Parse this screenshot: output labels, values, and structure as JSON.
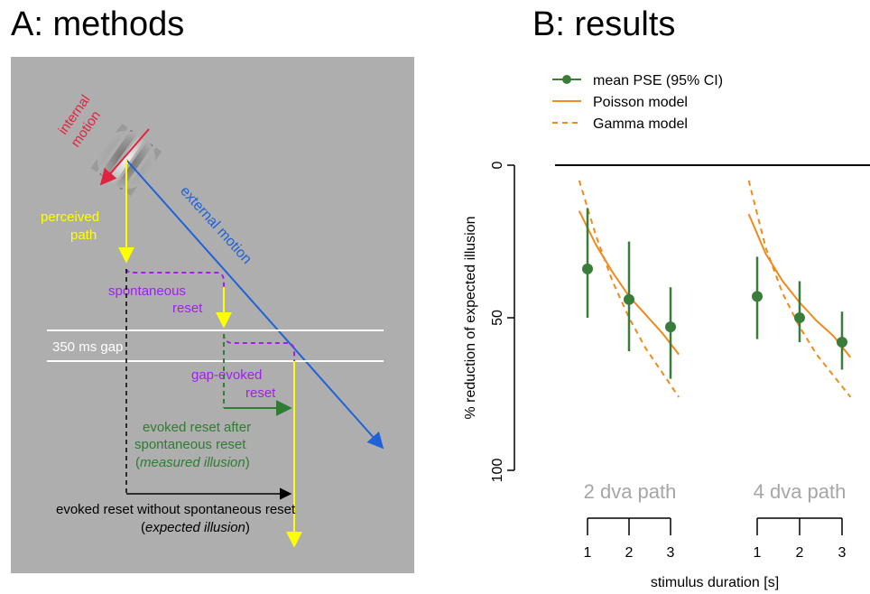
{
  "panel_a": {
    "title": "A: methods",
    "labels": {
      "internal_motion_1": "internal",
      "internal_motion_2": "motion",
      "external_motion": "external motion",
      "perceived_path_1": "perceived",
      "perceived_path_2": "path",
      "spontaneous_reset_1": "spontaneous",
      "spontaneous_reset_2": "reset",
      "gap": "350 ms gap",
      "gap_evoked_1": "gap-evoked",
      "gap_evoked_2": "reset",
      "evoked_after_1": "evoked reset after",
      "evoked_after_2": "spontaneous reset",
      "measured_open": "(",
      "measured": "measured illusion",
      "measured_close": ")",
      "evoked_without": "evoked reset without spontaneous reset",
      "expected_open": "(",
      "expected": "expected illusion",
      "expected_close": ")"
    },
    "colors": {
      "background": "#aeaeae",
      "internal": "#e0233f",
      "external": "#1f62d8",
      "perceived": "#ffff00",
      "spontaneous": "#a020f0",
      "evoked": "#2e7d32",
      "expected": "#000000",
      "gap_lines": "#ffffff"
    }
  },
  "panel_b": {
    "title": "B: results",
    "legend": {
      "mean": "mean PSE (95% CI)",
      "poisson": "Poisson model",
      "gamma": "Gamma model"
    },
    "group_labels": [
      "2 dva path",
      "4 dva path"
    ],
    "colors": {
      "points": "#3a7d3a",
      "model": "#f08a1c",
      "group_label": "#a6a6a6"
    }
  },
  "chart_data": {
    "type": "scatter",
    "ylabel": "% reduction of expected illusion",
    "xlabel": "stimulus duration [s]",
    "ylim": [
      0,
      100
    ],
    "y_inverted": true,
    "y_ticks": [
      0,
      50,
      100
    ],
    "x_ticks": [
      1,
      2,
      3
    ],
    "groups": [
      {
        "label": "2 dva path",
        "x": [
          1,
          2,
          3
        ],
        "mean": [
          34,
          44,
          53
        ],
        "ci_low": [
          14,
          25,
          40
        ],
        "ci_high": [
          50,
          61,
          70
        ],
        "poisson": {
          "x": [
            0.8,
            1.2,
            1.6,
            2.0,
            2.4,
            2.8,
            3.2
          ],
          "y": [
            15,
            26,
            35,
            43,
            49,
            55,
            62
          ]
        },
        "gamma": {
          "x": [
            0.8,
            1.2,
            1.6,
            2.0,
            2.4,
            2.8,
            3.2
          ],
          "y": [
            5,
            23,
            38,
            50,
            60,
            68,
            76
          ]
        }
      },
      {
        "label": "4 dva path",
        "x": [
          1,
          2,
          3
        ],
        "mean": [
          43,
          50,
          58
        ],
        "ci_low": [
          30,
          38,
          48
        ],
        "ci_high": [
          57,
          58,
          67
        ],
        "poisson": {
          "x": [
            0.8,
            1.2,
            1.6,
            2.0,
            2.4,
            2.8,
            3.2
          ],
          "y": [
            16,
            29,
            38,
            45,
            51,
            56,
            63
          ]
        },
        "gamma": {
          "x": [
            0.8,
            1.2,
            1.6,
            2.0,
            2.4,
            2.8,
            3.2
          ],
          "y": [
            5,
            27,
            42,
            53,
            62,
            69,
            76
          ]
        }
      }
    ]
  }
}
